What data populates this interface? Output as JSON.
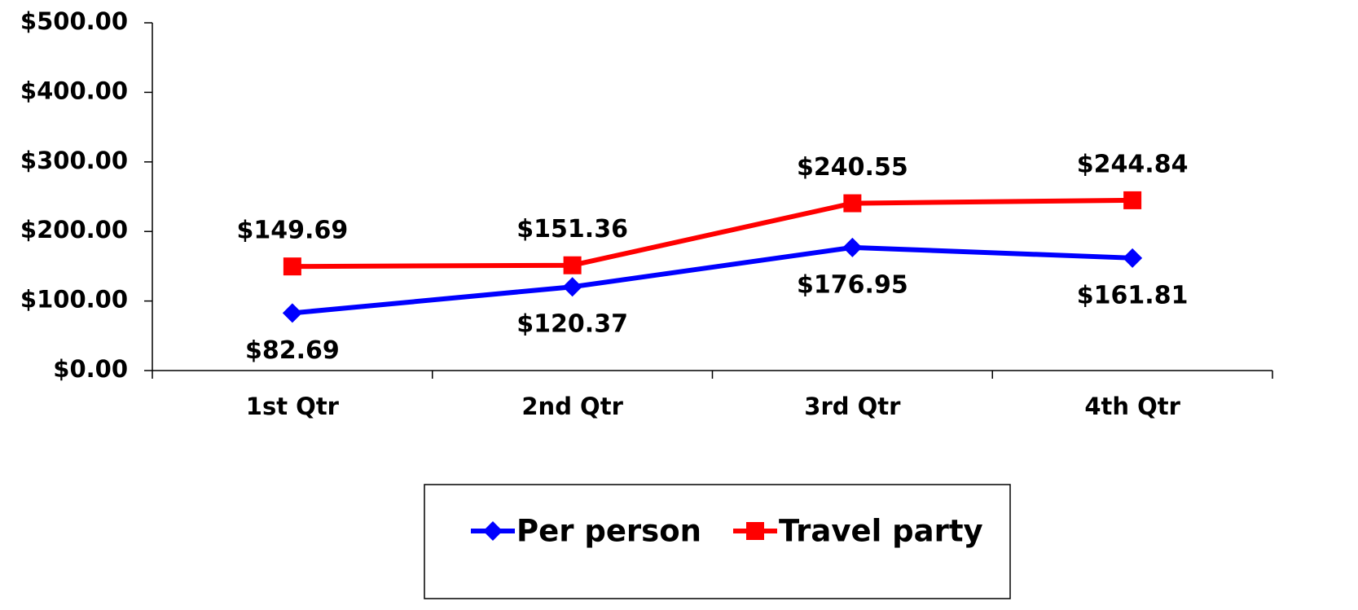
{
  "chart_data": {
    "type": "line",
    "categories": [
      "1st Qtr",
      "2nd Qtr",
      "3rd Qtr",
      "4th Qtr"
    ],
    "series": [
      {
        "name": "Per person",
        "color": "#0000ff",
        "marker": "diamond",
        "label_position": "below",
        "values": [
          82.69,
          120.37,
          176.95,
          161.81
        ],
        "value_labels": [
          "$82.69",
          "$120.37",
          "$176.95",
          "$161.81"
        ]
      },
      {
        "name": "Travel party",
        "color": "#ff0000",
        "marker": "square",
        "label_position": "above",
        "values": [
          149.69,
          151.36,
          240.55,
          244.84
        ],
        "value_labels": [
          "$149.69",
          "$151.36",
          "$240.55",
          "$244.84"
        ]
      }
    ],
    "ylim": [
      0,
      500
    ],
    "yticks": [
      {
        "value": 0,
        "label": "$0.00"
      },
      {
        "value": 100,
        "label": "$100.00"
      },
      {
        "value": 200,
        "label": "$200.00"
      },
      {
        "value": 300,
        "label": "$300.00"
      },
      {
        "value": 400,
        "label": "$400.00"
      },
      {
        "value": 500,
        "label": "$500.00"
      }
    ],
    "grid": false,
    "legend": "bottom"
  }
}
